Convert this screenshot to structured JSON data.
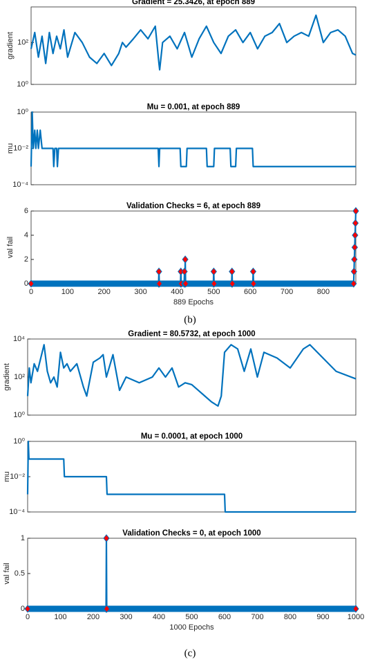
{
  "chart_data": [
    {
      "type": "line",
      "title": "Gradient = 25.3426, at epoch 889",
      "ylabel": "gradient",
      "yscale": "log",
      "xlim": [
        0,
        889
      ],
      "ylim": [
        1,
        5000
      ],
      "yticks": [
        {
          "value": 1,
          "label": "10⁰"
        },
        {
          "value": 100,
          "label": "10²"
        }
      ],
      "x": [
        0,
        10,
        20,
        30,
        40,
        50,
        60,
        70,
        80,
        90,
        100,
        120,
        140,
        160,
        180,
        200,
        220,
        240,
        250,
        260,
        280,
        300,
        320,
        340,
        350,
        352,
        360,
        380,
        400,
        420,
        440,
        460,
        480,
        500,
        520,
        540,
        560,
        580,
        600,
        620,
        640,
        660,
        680,
        700,
        720,
        740,
        760,
        780,
        800,
        820,
        840,
        860,
        880,
        889
      ],
      "series": [
        {
          "color": "#0072bd",
          "values": [
            50,
            300,
            20,
            200,
            10,
            300,
            30,
            200,
            50,
            400,
            20,
            300,
            100,
            20,
            10,
            30,
            8,
            30,
            100,
            60,
            150,
            400,
            150,
            600,
            10,
            5,
            100,
            200,
            50,
            300,
            20,
            150,
            600,
            100,
            30,
            200,
            400,
            100,
            300,
            50,
            200,
            300,
            800,
            100,
            200,
            300,
            200,
            2000,
            100,
            300,
            400,
            200,
            30,
            25.3426
          ]
        }
      ]
    },
    {
      "type": "line",
      "title": "Mu = 0.001, at epoch 889",
      "ylabel": "mu",
      "yscale": "log",
      "xlim": [
        0,
        889
      ],
      "ylim": [
        0.0001,
        1
      ],
      "yticks": [
        {
          "value": 0.0001,
          "label": "10⁻⁴"
        },
        {
          "value": 0.01,
          "label": "10⁻²"
        },
        {
          "value": 1,
          "label": "10⁰"
        }
      ],
      "x": [
        0,
        3,
        6,
        10,
        13,
        17,
        20,
        25,
        30,
        35,
        40,
        45,
        60,
        62,
        65,
        70,
        72,
        75,
        348,
        350,
        352,
        408,
        410,
        425,
        427,
        480,
        482,
        500,
        502,
        545,
        547,
        560,
        562,
        606,
        608,
        889
      ],
      "series": [
        {
          "color": "#0072bd",
          "values": [
            0.001,
            1,
            0.01,
            0.1,
            0.01,
            0.1,
            0.01,
            0.1,
            0.01,
            0.01,
            0.01,
            0.01,
            0.01,
            0.001,
            0.01,
            0.01,
            0.001,
            0.01,
            0.01,
            0.001,
            0.01,
            0.01,
            0.001,
            0.001,
            0.01,
            0.01,
            0.001,
            0.001,
            0.01,
            0.01,
            0.001,
            0.001,
            0.01,
            0.01,
            0.001,
            0.001
          ]
        }
      ]
    },
    {
      "type": "line",
      "title": "Validation Checks = 6, at epoch 889",
      "ylabel": "val fail",
      "xlabel": "889 Epochs",
      "marker": "diamond",
      "marker_color": "#ff0000",
      "xlim": [
        0,
        889
      ],
      "ylim": [
        0,
        6
      ],
      "yticks": [
        0,
        2,
        4,
        6
      ],
      "xticks": [
        0,
        100,
        200,
        300,
        400,
        500,
        600,
        700,
        800
      ],
      "x": [
        0,
        349,
        350,
        351,
        409,
        410,
        411,
        419,
        420,
        421,
        422,
        423,
        499,
        500,
        501,
        549,
        550,
        551,
        607,
        608,
        609,
        883,
        884,
        885,
        886,
        887,
        888,
        889
      ],
      "series": [
        {
          "color": "#0072bd",
          "values": [
            0,
            0,
            1,
            0,
            0,
            1,
            0,
            0,
            1,
            0,
            2,
            0,
            0,
            1,
            0,
            0,
            1,
            0,
            0,
            1,
            0,
            0,
            1,
            2,
            3,
            4,
            5,
            6
          ]
        }
      ]
    },
    {
      "type": "line",
      "title": "Gradient = 80.5732, at epoch 1000",
      "ylabel": "gradient",
      "yscale": "log",
      "xlim": [
        0,
        1000
      ],
      "ylim": [
        1,
        10000
      ],
      "yticks": [
        {
          "value": 1,
          "label": "10⁰"
        },
        {
          "value": 100,
          "label": "10²"
        },
        {
          "value": 10000,
          "label": "10⁴"
        }
      ],
      "x": [
        0,
        5,
        10,
        20,
        30,
        40,
        50,
        60,
        70,
        80,
        90,
        100,
        110,
        120,
        130,
        150,
        170,
        180,
        200,
        220,
        230,
        240,
        260,
        280,
        300,
        340,
        380,
        400,
        420,
        440,
        460,
        480,
        500,
        520,
        540,
        560,
        580,
        590,
        600,
        620,
        640,
        660,
        680,
        700,
        720,
        760,
        800,
        840,
        860,
        900,
        940,
        1000
      ],
      "series": [
        {
          "color": "#0072bd",
          "values": [
            10,
            300,
            50,
            500,
            200,
            1000,
            5000,
            200,
            50,
            100,
            30,
            2000,
            300,
            500,
            200,
            500,
            30,
            10,
            600,
            1000,
            1500,
            100,
            1500,
            20,
            100,
            50,
            100,
            300,
            100,
            300,
            30,
            50,
            40,
            20,
            10,
            5,
            3,
            10,
            2000,
            5000,
            3000,
            200,
            3000,
            100,
            2000,
            1000,
            300,
            3000,
            5000,
            1000,
            200,
            80.5732
          ]
        }
      ]
    },
    {
      "type": "line",
      "title": "Mu = 0.0001, at epoch 1000",
      "ylabel": "mu",
      "yscale": "log",
      "xlim": [
        0,
        1000
      ],
      "ylim": [
        0.0001,
        1
      ],
      "yticks": [
        {
          "value": 0.0001,
          "label": "10⁻⁴"
        },
        {
          "value": 0.01,
          "label": "10⁻²"
        },
        {
          "value": 1,
          "label": "10⁰"
        }
      ],
      "x": [
        0,
        2,
        4,
        110,
        112,
        240,
        242,
        600,
        602,
        1000
      ],
      "series": [
        {
          "color": "#0072bd",
          "values": [
            0.001,
            1,
            0.1,
            0.1,
            0.01,
            0.01,
            0.001,
            0.001,
            0.0001,
            0.0001
          ]
        }
      ]
    },
    {
      "type": "line",
      "title": "Validation Checks = 0, at epoch 1000",
      "ylabel": "val fail",
      "xlabel": "1000 Epochs",
      "marker": "diamond",
      "marker_color": "#ff0000",
      "xlim": [
        0,
        1000
      ],
      "ylim": [
        0,
        1
      ],
      "yticks": [
        0,
        0.5,
        1
      ],
      "xticks": [
        0,
        100,
        200,
        300,
        400,
        500,
        600,
        700,
        800,
        900,
        1000
      ],
      "x": [
        0,
        239,
        240,
        241,
        1000
      ],
      "series": [
        {
          "color": "#0072bd",
          "values": [
            0,
            0,
            1,
            0,
            0
          ]
        }
      ]
    }
  ],
  "captions": [
    "(b)",
    "(c)"
  ]
}
